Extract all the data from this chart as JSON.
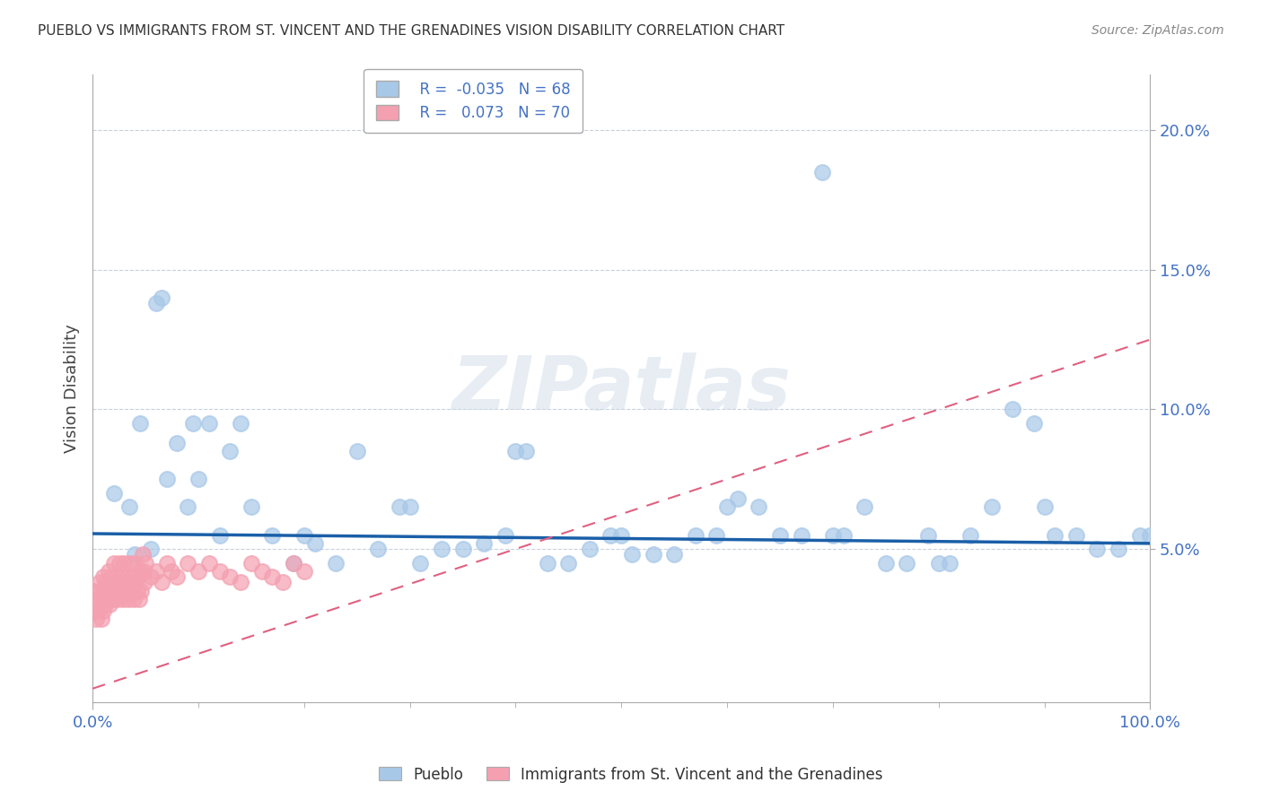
{
  "title": "PUEBLO VS IMMIGRANTS FROM ST. VINCENT AND THE GRENADINES VISION DISABILITY CORRELATION CHART",
  "source": "Source: ZipAtlas.com",
  "ylabel": "Vision Disability",
  "xlim": [
    0,
    100
  ],
  "ylim": [
    -0.5,
    22
  ],
  "ytick_vals": [
    5,
    10,
    15,
    20
  ],
  "ytick_labels": [
    "5.0%",
    "10.0%",
    "15.0%",
    "20.0%"
  ],
  "xtick_vals": [
    0,
    100
  ],
  "xtick_labels": [
    "0.0%",
    "100.0%"
  ],
  "legend_labels": [
    "Pueblo",
    "Immigrants from St. Vincent and the Grenadines"
  ],
  "pueblo_R": -0.035,
  "pueblo_N": 68,
  "immigrants_R": 0.073,
  "immigrants_N": 70,
  "pueblo_color": "#a8c8e8",
  "immigrants_color": "#f4a0b0",
  "pueblo_line_color": "#1a5fa8",
  "immigrants_line_color": "#e06080",
  "background_color": "#ffffff",
  "watermark": "ZIPatlas",
  "pueblo_x": [
    2.0,
    3.5,
    4.5,
    5.5,
    6.5,
    8.0,
    9.5,
    11.0,
    13.0,
    15.0,
    17.0,
    19.0,
    21.0,
    23.0,
    25.0,
    27.0,
    29.0,
    31.0,
    33.0,
    35.0,
    37.0,
    39.0,
    41.0,
    43.0,
    45.0,
    47.0,
    49.0,
    51.0,
    53.0,
    55.0,
    57.0,
    59.0,
    61.0,
    63.0,
    65.0,
    67.0,
    69.0,
    71.0,
    73.0,
    75.0,
    77.0,
    79.0,
    81.0,
    83.0,
    85.0,
    87.0,
    89.0,
    91.0,
    93.0,
    95.0,
    97.0,
    99.0,
    6.0,
    9.0,
    12.0,
    4.0,
    7.0,
    10.0,
    20.0,
    30.0,
    40.0,
    50.0,
    60.0,
    70.0,
    80.0,
    90.0,
    100.0,
    14.0
  ],
  "pueblo_y": [
    7.0,
    6.5,
    9.5,
    5.0,
    14.0,
    8.8,
    9.5,
    9.5,
    8.5,
    6.5,
    5.5,
    4.5,
    5.2,
    4.5,
    8.5,
    5.0,
    6.5,
    4.5,
    5.0,
    5.0,
    5.2,
    5.5,
    8.5,
    4.5,
    4.5,
    5.0,
    5.5,
    4.8,
    4.8,
    4.8,
    5.5,
    5.5,
    6.8,
    6.5,
    5.5,
    5.5,
    18.5,
    5.5,
    6.5,
    4.5,
    4.5,
    5.5,
    4.5,
    5.5,
    6.5,
    10.0,
    9.5,
    5.5,
    5.5,
    5.0,
    5.0,
    5.5,
    13.8,
    6.5,
    5.5,
    4.8,
    7.5,
    7.5,
    5.5,
    6.5,
    8.5,
    5.5,
    6.5,
    5.5,
    4.5,
    6.5,
    5.5,
    9.5
  ],
  "immigrants_x": [
    0.1,
    0.2,
    0.3,
    0.4,
    0.5,
    0.5,
    0.6,
    0.7,
    0.8,
    0.9,
    1.0,
    1.0,
    1.1,
    1.2,
    1.3,
    1.4,
    1.5,
    1.6,
    1.7,
    1.8,
    1.9,
    2.0,
    2.1,
    2.2,
    2.3,
    2.4,
    2.5,
    2.6,
    2.7,
    2.8,
    2.9,
    3.0,
    3.1,
    3.2,
    3.3,
    3.4,
    3.5,
    3.6,
    3.7,
    3.8,
    3.9,
    4.0,
    4.1,
    4.2,
    4.3,
    4.4,
    4.5,
    4.6,
    4.7,
    4.8,
    4.9,
    5.0,
    5.5,
    6.0,
    6.5,
    7.0,
    7.5,
    8.0,
    9.0,
    10.0,
    11.0,
    12.0,
    13.0,
    14.0,
    15.0,
    16.0,
    17.0,
    18.0,
    19.0,
    20.0
  ],
  "immigrants_y": [
    3.5,
    2.8,
    2.5,
    3.0,
    3.2,
    2.8,
    3.5,
    3.8,
    2.5,
    3.2,
    4.0,
    2.8,
    3.5,
    3.0,
    3.8,
    3.2,
    4.2,
    3.0,
    3.5,
    4.0,
    3.2,
    4.5,
    3.8,
    3.5,
    4.0,
    3.2,
    4.5,
    3.8,
    3.5,
    4.0,
    3.2,
    4.5,
    3.8,
    3.5,
    4.0,
    3.2,
    4.5,
    3.8,
    3.5,
    4.0,
    3.2,
    4.5,
    3.8,
    3.5,
    4.0,
    3.2,
    4.2,
    3.5,
    4.8,
    4.2,
    3.8,
    4.5,
    4.0,
    4.2,
    3.8,
    4.5,
    4.2,
    4.0,
    4.5,
    4.2,
    4.5,
    4.2,
    4.0,
    3.8,
    4.5,
    4.2,
    4.0,
    3.8,
    4.5,
    4.2
  ],
  "blue_line_x0": 0,
  "blue_line_x1": 100,
  "blue_line_y0": 5.55,
  "blue_line_y1": 5.2,
  "pink_line_x0": 0,
  "pink_line_x1": 100,
  "pink_line_y0": 0.0,
  "pink_line_y1": 12.5
}
